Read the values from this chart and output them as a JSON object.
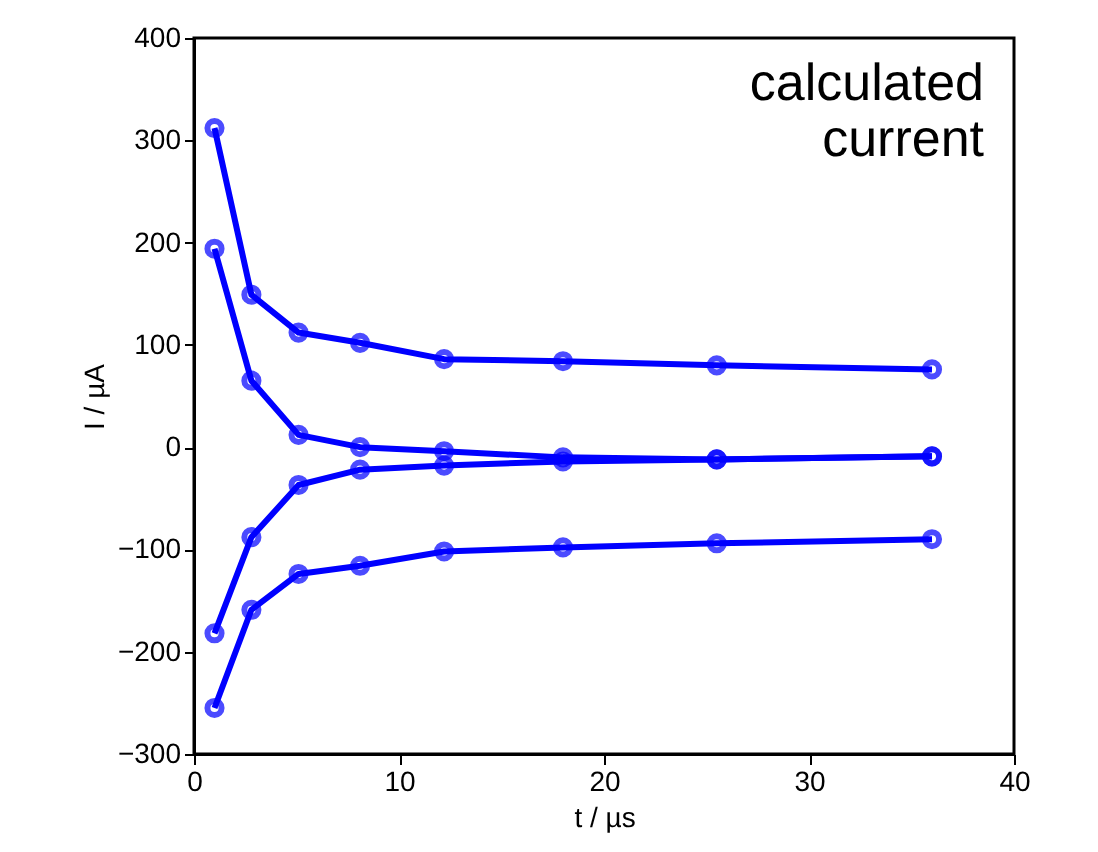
{
  "chart_data": {
    "type": "line",
    "xlabel": "t / µs",
    "ylabel": "I / µA",
    "annotations": [
      "calculated current"
    ],
    "x": [
      1,
      2.8,
      5.1,
      8.1,
      12.2,
      18,
      25.5,
      36
    ],
    "series": [
      {
        "color": "#0000ff",
        "values": [
          312,
          149,
          112,
          102,
          86,
          84,
          80,
          76
        ]
      },
      {
        "color": "#0000ff",
        "values": [
          194,
          65,
          12,
          0,
          -4,
          -10,
          -12,
          -9
        ]
      },
      {
        "color": "#0000ff",
        "values": [
          -182,
          -88,
          -37,
          -22,
          -18,
          -14,
          -12,
          -9
        ]
      },
      {
        "color": "#0000ff",
        "values": [
          -255,
          -159,
          -124,
          -116,
          -102,
          -98,
          -94,
          -90
        ]
      }
    ],
    "xlim": [
      0,
      40
    ],
    "xticks": [
      0,
      10,
      20,
      30,
      40
    ],
    "ylim": [
      -300,
      400
    ],
    "yticks": [
      -300,
      -200,
      -100,
      0,
      100,
      200,
      300,
      400
    ],
    "grid": false,
    "legend": false,
    "marker": "circle",
    "line_style": "solid"
  }
}
